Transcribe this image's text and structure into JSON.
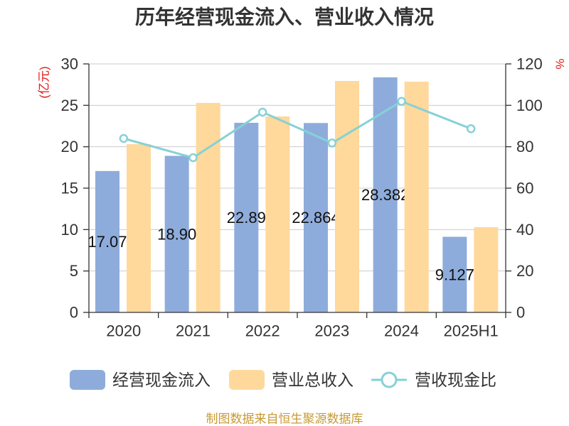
{
  "footer": "制图数据来自恒生聚源数据库",
  "colors": {
    "title": "#333333",
    "axis_title": "#e21b1b",
    "footer": "#c79a35",
    "grid": "#cccccc"
  },
  "chart_data": {
    "type": "bar",
    "title": "历年经营现金流入、营业收入情况",
    "categories": [
      "2020",
      "2021",
      "2022",
      "2023",
      "2024",
      "2025H1"
    ],
    "y_left": {
      "label": "(亿元)",
      "lim": [
        0,
        30
      ],
      "ticks": [
        0,
        5,
        10,
        15,
        20,
        25,
        30
      ]
    },
    "y_right": {
      "label": "%",
      "lim": [
        0,
        120
      ],
      "ticks": [
        0,
        20,
        40,
        60,
        80,
        100,
        120
      ]
    },
    "series": [
      {
        "name": "经营现金流入",
        "type": "bar",
        "axis": "left",
        "values": [
          17.07,
          18.9,
          22.89,
          22.864,
          28.382,
          9.127
        ],
        "labels": [
          "17.07",
          "18.90",
          "22.89",
          "22.864",
          "28.382",
          "9.127"
        ],
        "color": "#8eacdb"
      },
      {
        "name": "营业总收入",
        "type": "bar",
        "axis": "left",
        "values": [
          20.31,
          25.29,
          23.66,
          27.94,
          27.86,
          10.29
        ],
        "color": "#ffd89b"
      },
      {
        "name": "营收现金比",
        "type": "line",
        "axis": "right",
        "values": [
          84.0,
          74.7,
          96.7,
          81.8,
          101.9,
          88.7
        ],
        "color": "#86d1d6"
      }
    ],
    "grid": true,
    "legend": "bottom"
  }
}
